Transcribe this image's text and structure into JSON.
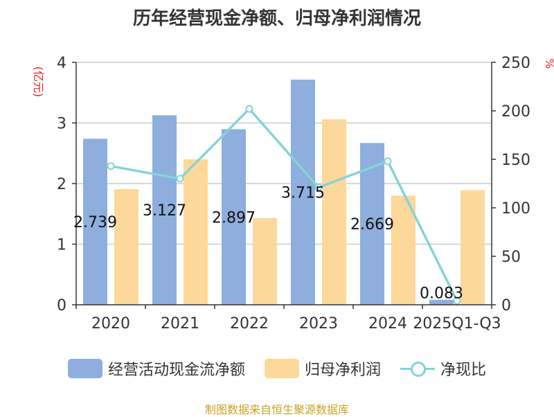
{
  "title": "历年经营现金净额、归母净利润情况",
  "source": "制图数据来自恒生聚源数据库",
  "colors": {
    "cash_flow": "#8eaedd",
    "net_profit": "#fdd89b",
    "ratio": "#85d3d8",
    "axis_label": "#e02020",
    "grid": "#cccccc",
    "axis": "#333333"
  },
  "chart_data": {
    "type": "bar",
    "title": "历年经营现金净额、归母净利润情况",
    "categories": [
      "2020",
      "2021",
      "2022",
      "2023",
      "2024",
      "2025Q1-Q3"
    ],
    "y_left": {
      "label": "(亿元)",
      "range": [
        0,
        4
      ],
      "ticks": [
        0,
        1,
        2,
        3,
        4
      ]
    },
    "y_right": {
      "label": "%",
      "range": [
        0,
        250
      ],
      "ticks": [
        0,
        50,
        100,
        150,
        200,
        250
      ]
    },
    "grid": true,
    "legend_position": "bottom",
    "series": [
      {
        "name": "经营活动现金流净额",
        "type": "bar",
        "axis": "left",
        "values": [
          2.739,
          3.127,
          2.897,
          3.715,
          2.669,
          0.083
        ],
        "labels": [
          "2.739",
          "3.127",
          "2.897",
          "3.715",
          "2.669",
          "0.083"
        ]
      },
      {
        "name": "归母净利润",
        "type": "bar",
        "axis": "left",
        "values": [
          1.91,
          2.4,
          1.43,
          3.06,
          1.8,
          1.89
        ]
      },
      {
        "name": "净现比",
        "type": "line",
        "axis": "right",
        "values": [
          143,
          130,
          202,
          121,
          148,
          4
        ]
      }
    ]
  }
}
